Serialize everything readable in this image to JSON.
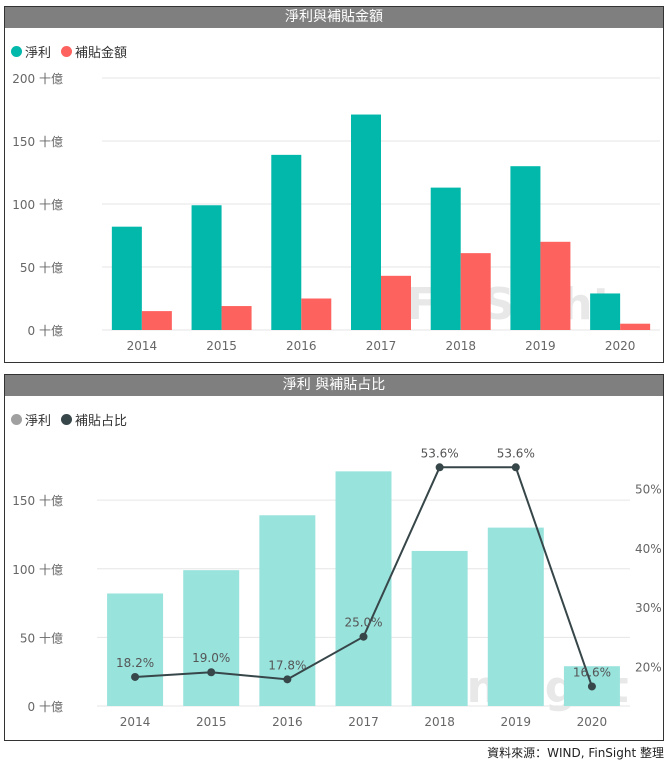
{
  "source_note": "資料來源：WIND, FinSight 整理",
  "watermark": "FinSight",
  "colors": {
    "teal": "#01b8aa",
    "red": "#fd625e",
    "light_teal": "#99e3dd",
    "grey_legend": "#a0a0a0",
    "dark_line": "#374649"
  },
  "chart_data": [
    {
      "type": "bar",
      "title": "淨利與補貼金額",
      "categories": [
        "2014",
        "2015",
        "2016",
        "2017",
        "2018",
        "2019",
        "2020"
      ],
      "series": [
        {
          "name": "淨利",
          "values": [
            82,
            99,
            139,
            171,
            113,
            130,
            29
          ]
        },
        {
          "name": "補貼金額",
          "values": [
            15,
            19,
            25,
            43,
            61,
            70,
            5
          ]
        }
      ],
      "ylim": [
        0,
        200
      ],
      "yticks": [
        0,
        50,
        100,
        150,
        200
      ],
      "ytick_labels": [
        "0 十億",
        "50 十億",
        "100 十億",
        "150 十億",
        "200 十億"
      ],
      "legend": "top-left",
      "grid": true
    },
    {
      "type": "bar+line",
      "title": "淨利 與補貼占比",
      "categories": [
        "2014",
        "2015",
        "2016",
        "2017",
        "2018",
        "2019",
        "2020"
      ],
      "series": [
        {
          "name": "淨利",
          "values": [
            82,
            99,
            139,
            171,
            113,
            130,
            29
          ],
          "axis": "left"
        },
        {
          "name": "補貼占比",
          "values": [
            18.2,
            19.0,
            17.8,
            25.0,
            53.6,
            53.6,
            16.6
          ],
          "axis": "right"
        }
      ],
      "data_labels": [
        "18.2%",
        "19.0%",
        "17.8%",
        "25.0%",
        "53.6%",
        "53.6%",
        "16.6%"
      ],
      "ylim_left": [
        0,
        180
      ],
      "yticks_left": [
        0,
        50,
        100,
        150
      ],
      "ytick_labels_left": [
        "0 十億",
        "50 十億",
        "100 十億",
        "150 十億"
      ],
      "ylim_right": [
        13.3,
        55
      ],
      "yticks_right": [
        20,
        30,
        40,
        50
      ],
      "ytick_labels_right": [
        "20%",
        "30%",
        "40%",
        "50%"
      ],
      "legend": "top-left",
      "grid": true
    }
  ]
}
